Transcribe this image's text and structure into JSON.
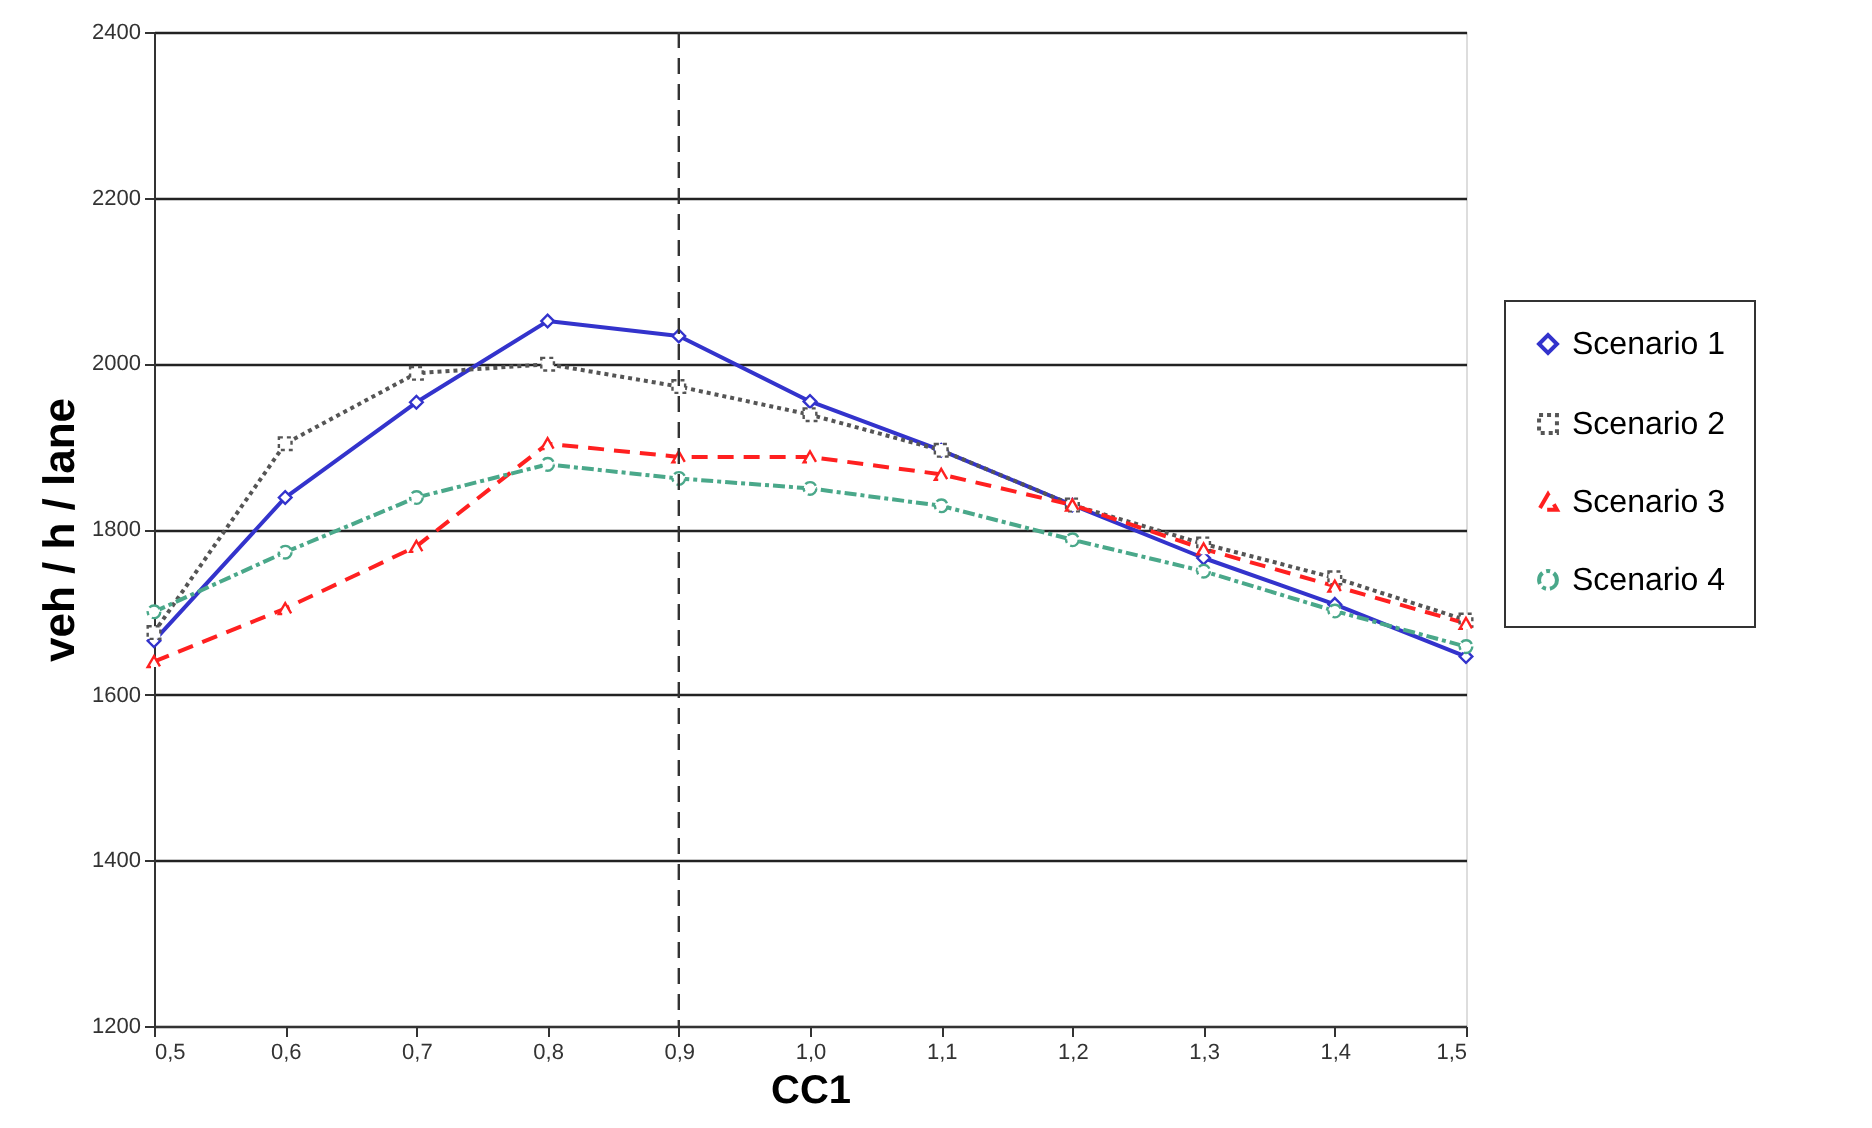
{
  "chart_data": {
    "type": "line",
    "xlabel": "CC1",
    "ylabel": "veh / h / lane",
    "x": [
      0.5,
      0.6,
      0.7,
      0.8,
      0.9,
      1.0,
      1.1,
      1.2,
      1.3,
      1.4,
      1.5
    ],
    "series": [
      {
        "name": "Scenario 1",
        "color": "#3333cc",
        "marker": "diamond",
        "line_style": "solid",
        "values": [
          1665,
          1838,
          1953,
          2051,
          2033,
          1954,
          1895,
          1829,
          1765,
          1709,
          1646
        ]
      },
      {
        "name": "Scenario 2",
        "color": "#555555",
        "marker": "square",
        "line_style": "dotted",
        "values": [
          1675,
          1903,
          1988,
          1999,
          1972,
          1938,
          1895,
          1829,
          1782,
          1741,
          1690
        ]
      },
      {
        "name": "Scenario 3",
        "color": "#ff2020",
        "marker": "triangle",
        "line_style": "dashed",
        "values": [
          1640,
          1704,
          1779,
          1903,
          1887,
          1887,
          1866,
          1829,
          1776,
          1731,
          1686
        ]
      },
      {
        "name": "Scenario 4",
        "color": "#4aa88a",
        "marker": "circle",
        "line_style": "dashdot",
        "values": [
          1700,
          1772,
          1838,
          1878,
          1861,
          1849,
          1828,
          1787,
          1749,
          1701,
          1658
        ]
      }
    ],
    "xlim": [
      0.5,
      1.5
    ],
    "xticks": [
      {
        "value": 0.5,
        "label": "0,5"
      },
      {
        "value": 0.6,
        "label": "0,6"
      },
      {
        "value": 0.7,
        "label": "0,7"
      },
      {
        "value": 0.8,
        "label": "0,8"
      },
      {
        "value": 0.9,
        "label": "0,9"
      },
      {
        "value": 1.0,
        "label": "1,0"
      },
      {
        "value": 1.1,
        "label": "1,1"
      },
      {
        "value": 1.2,
        "label": "1,2"
      },
      {
        "value": 1.3,
        "label": "1,3"
      },
      {
        "value": 1.4,
        "label": "1,4"
      },
      {
        "value": 1.5,
        "label": "1,5"
      }
    ],
    "ylim": [
      1200,
      2400
    ],
    "yticks": [
      1200,
      1400,
      1600,
      1800,
      2000,
      2200,
      2400
    ],
    "ref_lines": [
      {
        "axis": "x",
        "value": 0.9,
        "label": null,
        "color": "#333333",
        "line_style": "dashed"
      }
    ],
    "grid": "y",
    "legend": "right"
  }
}
